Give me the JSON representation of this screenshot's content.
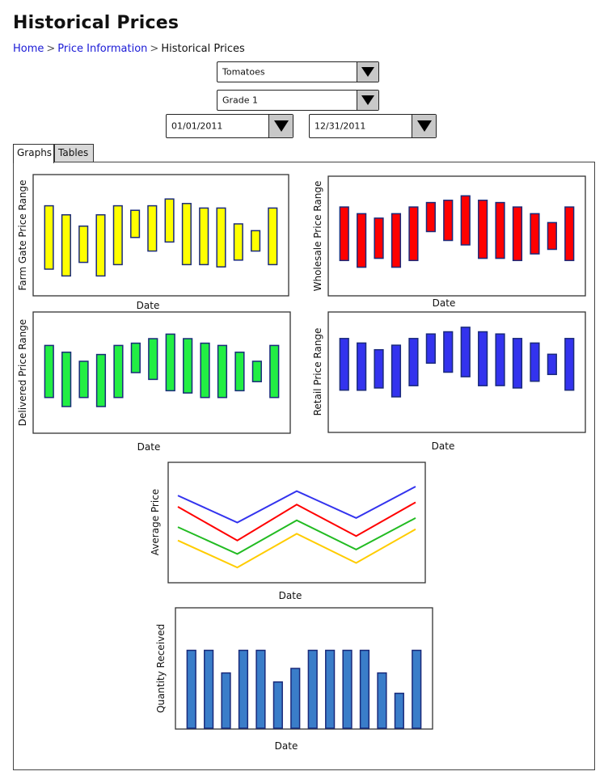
{
  "page": {
    "title": "Historical Prices",
    "breadcrumb": [
      "Home",
      "Price Information",
      "Historical Prices"
    ],
    "breadcrumb_separator": ">"
  },
  "filters": {
    "product": "Tomatoes",
    "grade": "Grade 1",
    "start_date": "01/01/2011",
    "end_date": "12/31/2011"
  },
  "tabs": [
    {
      "label": "Graphs",
      "active": true
    },
    {
      "label": "Tables",
      "active": false
    }
  ],
  "chart_data": [
    {
      "type": "bar",
      "kind": "range",
      "ylabel": "Farm Gate Price Range",
      "xlabel": "Date",
      "color": "#ffff00",
      "ranges": [
        [
          2,
          7.6
        ],
        [
          1.4,
          6.8
        ],
        [
          2.6,
          5.8
        ],
        [
          1.4,
          6.8
        ],
        [
          2.4,
          7.6
        ],
        [
          4.8,
          7.2
        ],
        [
          3.6,
          7.6
        ],
        [
          4.4,
          8.2
        ],
        [
          2.4,
          7.8
        ],
        [
          2.4,
          7.4
        ],
        [
          2.2,
          7.4
        ],
        [
          2.8,
          6
        ],
        [
          3.6,
          5.4
        ],
        [
          2.4,
          7.4
        ]
      ],
      "ylim": [
        0,
        10
      ]
    },
    {
      "type": "bar",
      "kind": "range",
      "ylabel": "Wholesale Price Range",
      "xlabel": "Date",
      "color": "#ff0000",
      "ranges": [
        [
          2.8,
          7.6
        ],
        [
          2.2,
          7
        ],
        [
          3,
          6.6
        ],
        [
          2.2,
          7
        ],
        [
          2.8,
          7.6
        ],
        [
          5.4,
          8
        ],
        [
          4.6,
          8.2
        ],
        [
          4.2,
          8.6
        ],
        [
          3,
          8.2
        ],
        [
          3,
          8
        ],
        [
          2.8,
          7.6
        ],
        [
          3.4,
          7
        ],
        [
          3.8,
          6.2
        ],
        [
          2.8,
          7.6
        ]
      ],
      "ylim": [
        0,
        10
      ]
    },
    {
      "type": "bar",
      "kind": "range",
      "ylabel": "Delivered Price Range",
      "xlabel": "Date",
      "color": "#22ee44",
      "ranges": [
        [
          2.8,
          7.4
        ],
        [
          2,
          6.8
        ],
        [
          2.8,
          6
        ],
        [
          2,
          6.6
        ],
        [
          2.8,
          7.4
        ],
        [
          5,
          7.6
        ],
        [
          4.4,
          8
        ],
        [
          3.4,
          8.4
        ],
        [
          3.2,
          8
        ],
        [
          2.8,
          7.6
        ],
        [
          2.8,
          7.4
        ],
        [
          3.4,
          6.8
        ],
        [
          4.2,
          6
        ],
        [
          2.8,
          7.4
        ]
      ],
      "ylim": [
        0,
        10
      ]
    },
    {
      "type": "bar",
      "kind": "range",
      "ylabel": "Retail Price Range",
      "xlabel": "Date",
      "color": "#3333ee",
      "ranges": [
        [
          3.4,
          8
        ],
        [
          3.4,
          7.6
        ],
        [
          3.6,
          7
        ],
        [
          2.8,
          7.4
        ],
        [
          3.8,
          8
        ],
        [
          5.8,
          8.4
        ],
        [
          5,
          8.6
        ],
        [
          4.6,
          9
        ],
        [
          3.8,
          8.6
        ],
        [
          3.8,
          8.4
        ],
        [
          3.6,
          8
        ],
        [
          4.2,
          7.6
        ],
        [
          4.8,
          6.6
        ],
        [
          3.4,
          8
        ]
      ],
      "ylim": [
        0,
        10
      ]
    },
    {
      "type": "line",
      "ylabel": "Average Price",
      "xlabel": "Date",
      "series": [
        {
          "color": "#3333ee",
          "values": [
            7.4,
            5,
            7.8,
            5.4,
            8.2
          ]
        },
        {
          "color": "#ff0000",
          "values": [
            6.4,
            3.4,
            6.6,
            3.8,
            6.8
          ]
        },
        {
          "color": "#22bb22",
          "values": [
            4.6,
            2.2,
            5.2,
            2.6,
            5.4
          ]
        },
        {
          "color": "#ffcc00",
          "values": [
            3.4,
            1,
            4,
            1.4,
            4.4
          ]
        }
      ],
      "ylim": [
        0,
        10
      ]
    },
    {
      "type": "bar",
      "ylabel": "Quantity Received",
      "xlabel": "Date",
      "color": "#3a7dc9",
      "values": [
        6.6,
        6.6,
        4.6,
        6.6,
        6.6,
        3.8,
        5,
        6.6,
        6.6,
        6.6,
        6.6,
        4.6,
        2.8,
        6.6
      ],
      "ylim": [
        0,
        10
      ]
    }
  ]
}
